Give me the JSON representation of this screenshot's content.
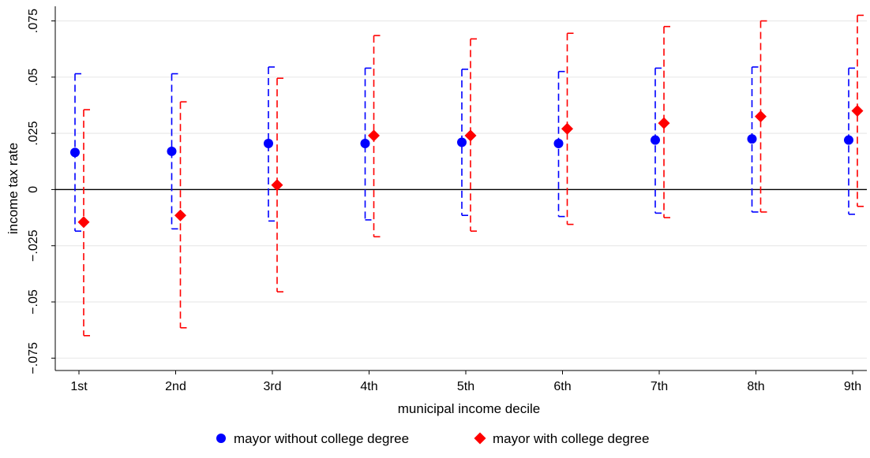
{
  "chart_data": {
    "type": "scatter",
    "title": "",
    "xlabel": "municipal income decile",
    "ylabel": "income tax rate",
    "categories": [
      "1st",
      "2nd",
      "3rd",
      "4th",
      "5th",
      "6th",
      "7th",
      "8th",
      "9th"
    ],
    "y_ticks": [
      {
        "value": -0.075,
        "label": "−.075"
      },
      {
        "value": -0.05,
        "label": "−.05"
      },
      {
        "value": -0.025,
        "label": "−.025"
      },
      {
        "value": 0,
        "label": "0"
      },
      {
        "value": 0.025,
        "label": ".025"
      },
      {
        "value": 0.05,
        "label": ".05"
      },
      {
        "value": 0.075,
        "label": ".075"
      }
    ],
    "ylim": [
      -0.0805,
      0.0815
    ],
    "grid": true,
    "reference_line": 0,
    "legend_position": "bottom",
    "series": [
      {
        "name": "mayor without college degree",
        "color": "#0000ff",
        "marker": "circle",
        "values": [
          0.0165,
          0.017,
          0.0205,
          0.0205,
          0.021,
          0.0205,
          0.022,
          0.0225,
          0.022
        ],
        "lower": [
          -0.0185,
          -0.0175,
          -0.014,
          -0.0135,
          -0.0115,
          -0.012,
          -0.0105,
          -0.01,
          -0.011
        ],
        "upper": [
          0.0515,
          0.0515,
          0.0545,
          0.054,
          0.0535,
          0.0525,
          0.054,
          0.0545,
          0.054
        ]
      },
      {
        "name": "mayor with college degree",
        "color": "#ff0000",
        "marker": "diamond",
        "values": [
          -0.0145,
          -0.0115,
          0.002,
          0.024,
          0.024,
          0.027,
          0.0295,
          0.0325,
          0.035
        ],
        "lower": [
          -0.065,
          -0.0615,
          -0.0455,
          -0.021,
          -0.0185,
          -0.0155,
          -0.0125,
          -0.01,
          -0.0075
        ],
        "upper": [
          0.0355,
          0.039,
          0.0495,
          0.0685,
          0.067,
          0.0695,
          0.0725,
          0.075,
          0.0775
        ]
      }
    ]
  }
}
